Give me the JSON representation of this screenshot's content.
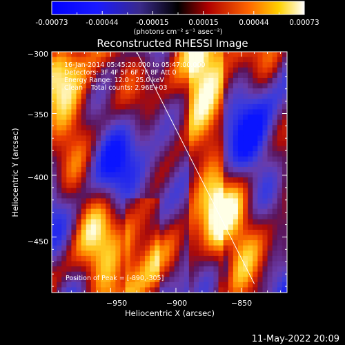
{
  "colorbar": {
    "tick_labels": [
      "-0.00073",
      "-0.00044",
      "-0.00015",
      "0.00015",
      "0.00044",
      "0.00073"
    ],
    "units_label": "(photons cm⁻² s⁻¹ asec⁻²)"
  },
  "chart_data": {
    "type": "heatmap",
    "title": "Reconstructed RHESSI Image",
    "xlabel": "Heliocentric X (arcsec)",
    "ylabel": "Heliocentric Y (arcsec)",
    "xlim": [
      -995,
      -815
    ],
    "ylim": [
      -495,
      -300
    ],
    "x_ticks": [
      -950,
      -900,
      -850
    ],
    "x_tick_labels": [
      "−950",
      "−900",
      "−850"
    ],
    "y_ticks": [
      -300,
      -350,
      -400,
      -450
    ],
    "y_tick_labels": [
      "−300",
      "−350",
      "−400",
      "−450"
    ],
    "value_range": [
      -0.00073,
      0.00073
    ],
    "colormap": [
      "#0000ff",
      "#6a3fb0",
      "#2a0a2a",
      "#c81010",
      "#ff8a00",
      "#ffffff"
    ],
    "annotations": [
      "16-Jan-2014 05:45:20.000 to 05:47:00.000",
      "Detectors: 3F 4F 5F 6F 7F 8F  Att 0",
      "Energy Range: 12.0 - 25.0 keV",
      "Clean    Total counts: 2.96E+03",
      "Position of Peak = [-890,-305]"
    ],
    "limb_line": {
      "x": [
        -930,
        -840
      ],
      "y": [
        -300,
        -488
      ]
    },
    "grid": false
  },
  "footer": {
    "date": "11-May-2022 20:09"
  }
}
